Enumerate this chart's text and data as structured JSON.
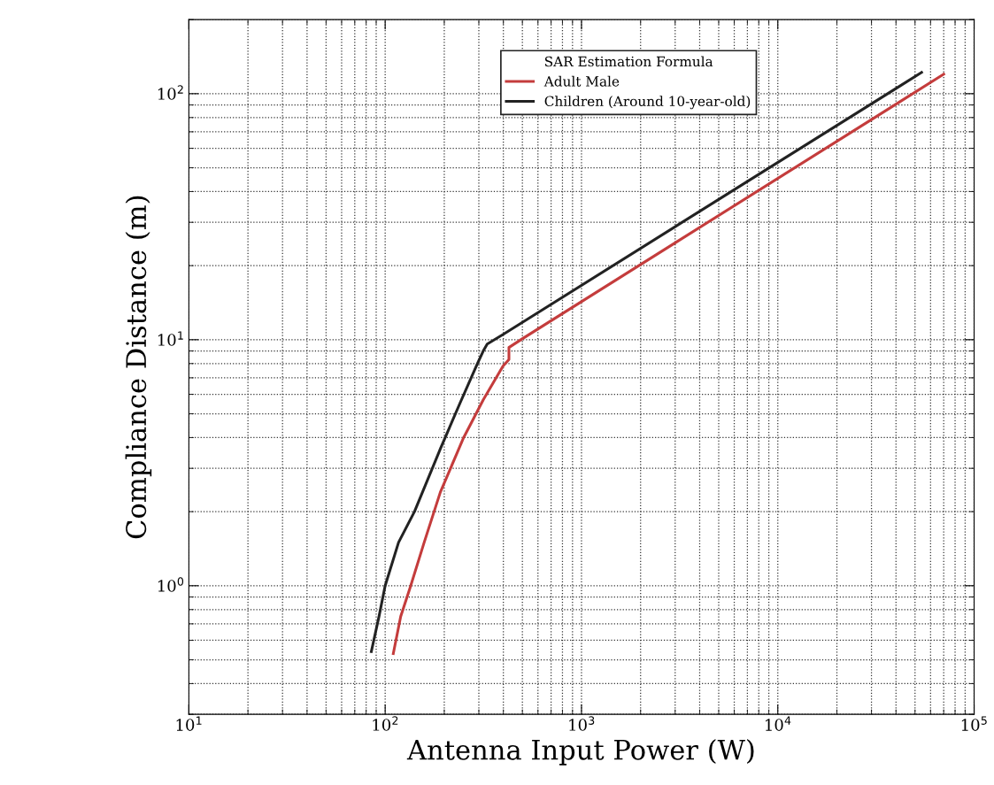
{
  "chart_data": {
    "type": "line",
    "xlabel": "Antenna Input Power (W)",
    "ylabel": "Compliance Distance (m)",
    "legend_title": "SAR Estimation Formula",
    "log": "xy",
    "grid": true,
    "legend": "top",
    "line_style": "solid",
    "marker": "none",
    "xlim": [
      10,
      100000
    ],
    "ylim": [
      0.3,
      200
    ],
    "xticks": [
      {
        "value": 10,
        "label": "10$^{1}$"
      },
      {
        "value": 100,
        "label": "10$^{2}$"
      },
      {
        "value": 1000,
        "label": "10$^{3}$"
      },
      {
        "value": 10000,
        "label": "10$^{4}$"
      },
      {
        "value": 100000,
        "label": "10$^{5}$"
      }
    ],
    "yticks": [
      {
        "value": 1,
        "label": "10$^{0}$"
      },
      {
        "value": 10,
        "label": "10$^{1}$"
      },
      {
        "value": 100,
        "label": "10$^{2}$"
      }
    ],
    "series": [
      {
        "name": "Adult Male",
        "color": "#c43c3c",
        "x": [
          110,
          120,
          135,
          158,
          191,
          251,
          316,
          398,
          427,
          427,
          501,
          70000
        ],
        "values": [
          0.53,
          0.75,
          1.0,
          1.5,
          2.4,
          4.0,
          5.7,
          7.8,
          8.3,
          9.3,
          10.1,
          120
        ]
      },
      {
        "name": "Children (Around 10-year-old)",
        "color": "#222222",
        "x": [
          85,
          93,
          100,
          117,
          141,
          191,
          240,
          295,
          316,
          331,
          398,
          54000
        ],
        "values": [
          0.54,
          0.75,
          1.0,
          1.5,
          2.0,
          3.6,
          5.5,
          8.0,
          9.0,
          9.6,
          10.5,
          122
        ]
      }
    ]
  }
}
